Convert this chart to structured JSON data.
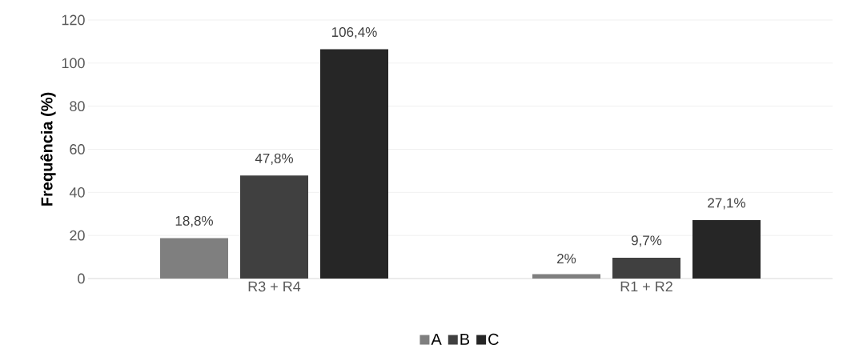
{
  "chart_data": {
    "type": "bar",
    "ylabel": "Frequência (%)",
    "categories": [
      "R3 + R4",
      "R1 + R2"
    ],
    "series": [
      {
        "name": "A",
        "color": "#7f7f7f",
        "values": [
          18.8,
          2
        ],
        "value_labels": [
          "18,8%",
          "2%"
        ]
      },
      {
        "name": "B",
        "color": "#404040",
        "values": [
          47.8,
          9.7
        ],
        "value_labels": [
          "47,8%",
          "9,7%"
        ]
      },
      {
        "name": "C",
        "color": "#262626",
        "values": [
          106.4,
          27.1
        ],
        "value_labels": [
          "106,4%",
          "27,1%"
        ]
      }
    ],
    "ylim": [
      0,
      120
    ],
    "yticks": [
      0,
      20,
      40,
      60,
      80,
      100,
      120
    ],
    "grid": "y",
    "legend": "bottom"
  }
}
